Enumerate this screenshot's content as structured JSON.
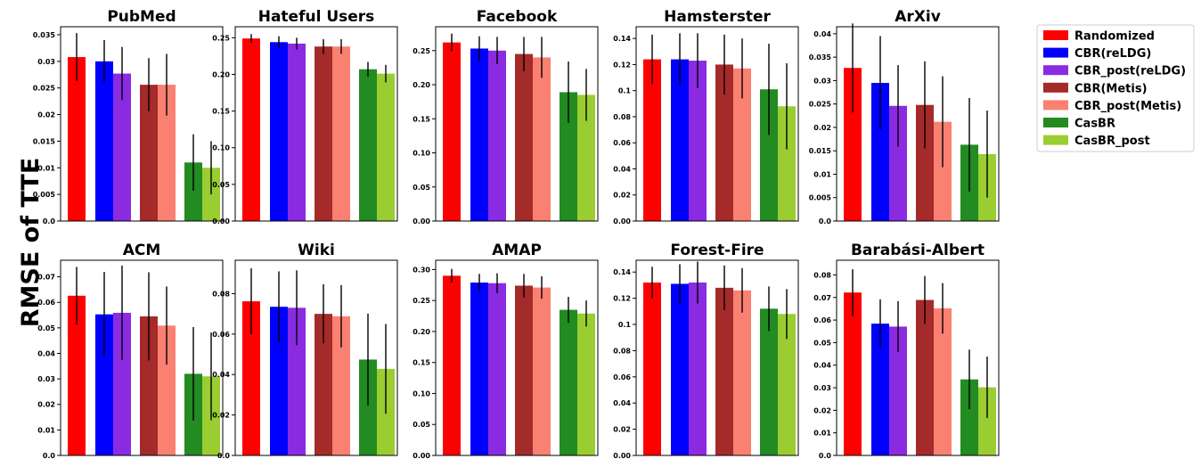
{
  "figure": {
    "ylabel": "RMSE of TTE"
  },
  "legend": {
    "placement": "right",
    "entries": [
      {
        "label": "Randomized",
        "color": "#ff0000"
      },
      {
        "label": "CBR(reLDG)",
        "color": "#0000ff"
      },
      {
        "label": "CBR_post(reLDG)",
        "color": "#8a2be2"
      },
      {
        "label": "CBR(Metis)",
        "color": "#a52a2a"
      },
      {
        "label": "CBR_post(Metis)",
        "color": "#fa8072"
      },
      {
        "label": "CasBR",
        "color": "#228b22"
      },
      {
        "label": "CasBR_post",
        "color": "#9acd32"
      }
    ]
  },
  "chart_data": [
    {
      "type": "bar",
      "title": "PubMed",
      "ylim": [
        0,
        0.0365
      ],
      "ticks": [
        0.0,
        0.005,
        0.01,
        0.015,
        0.02,
        0.025,
        0.03,
        0.035
      ],
      "tick_labels": [
        "0.0",
        "0.005",
        "0.01",
        "0.015",
        "0.02",
        "0.025",
        "0.03",
        "0.035"
      ],
      "values": [
        0.0308,
        0.03,
        0.0277,
        0.0256,
        0.0256,
        0.011,
        0.01
      ],
      "errors": [
        0.0045,
        0.004,
        0.005,
        0.005,
        0.0058,
        0.0053,
        0.005
      ]
    },
    {
      "type": "bar",
      "title": "Hateful Users",
      "ylim": [
        0,
        0.265
      ],
      "ticks": [
        0.0,
        0.05,
        0.1,
        0.15,
        0.2,
        0.25
      ],
      "tick_labels": [
        "0.00",
        "0.05",
        "0.10",
        "0.15",
        "0.20",
        "0.25"
      ],
      "values": [
        0.249,
        0.244,
        0.242,
        0.238,
        0.238,
        0.207,
        0.201
      ],
      "errors": [
        0.006,
        0.008,
        0.008,
        0.01,
        0.01,
        0.01,
        0.012
      ]
    },
    {
      "type": "bar",
      "title": "Facebook",
      "ylim": [
        0,
        0.285
      ],
      "ticks": [
        0.0,
        0.05,
        0.1,
        0.15,
        0.2,
        0.25
      ],
      "tick_labels": [
        "0.00",
        "0.05",
        "0.10",
        "0.15",
        "0.20",
        "0.25"
      ],
      "values": [
        0.262,
        0.253,
        0.25,
        0.245,
        0.24,
        0.189,
        0.185
      ],
      "errors": [
        0.013,
        0.018,
        0.02,
        0.025,
        0.03,
        0.045,
        0.038
      ]
    },
    {
      "type": "bar",
      "title": "Hamsterster",
      "ylim": [
        0,
        0.149
      ],
      "ticks": [
        0.0,
        0.02,
        0.04,
        0.06,
        0.08,
        0.1,
        0.12,
        0.14
      ],
      "tick_labels": [
        "0.00",
        "0.02",
        "0.04",
        "0.06",
        "0.08",
        "0.1",
        "0.12",
        "0.14"
      ],
      "values": [
        0.124,
        0.124,
        0.123,
        0.12,
        0.117,
        0.101,
        0.088
      ],
      "errors": [
        0.019,
        0.02,
        0.021,
        0.023,
        0.023,
        0.035,
        0.033
      ]
    },
    {
      "type": "bar",
      "title": "ArXiv",
      "ylim": [
        0,
        0.0415
      ],
      "ticks": [
        0.0,
        0.005,
        0.01,
        0.015,
        0.02,
        0.025,
        0.03,
        0.035,
        0.04
      ],
      "tick_labels": [
        "0.0",
        "0.005",
        "0.01",
        "0.015",
        "0.02",
        "0.025",
        "0.03",
        "0.035",
        "0.04"
      ],
      "values": [
        0.0327,
        0.0295,
        0.0246,
        0.0248,
        0.0212,
        0.0163,
        0.0143
      ],
      "errors": [
        0.0095,
        0.01,
        0.0087,
        0.0093,
        0.0097,
        0.01,
        0.0093
      ]
    },
    {
      "type": "bar",
      "title": "ACM",
      "ylim": [
        0,
        0.0765
      ],
      "ticks": [
        0.0,
        0.01,
        0.02,
        0.03,
        0.04,
        0.05,
        0.06,
        0.07
      ],
      "tick_labels": [
        "0.0",
        "0.01",
        "0.02",
        "0.03",
        "0.04",
        "0.05",
        "0.06",
        "0.07"
      ],
      "values": [
        0.0626,
        0.0553,
        0.0559,
        0.0545,
        0.0509,
        0.032,
        0.031
      ],
      "errors": [
        0.0113,
        0.0166,
        0.0185,
        0.0173,
        0.0153,
        0.0183,
        0.0172
      ]
    },
    {
      "type": "bar",
      "title": "Wiki",
      "ylim": [
        0,
        0.0965
      ],
      "ticks": [
        0.0,
        0.02,
        0.04,
        0.06,
        0.08
      ],
      "tick_labels": [
        "0.0",
        "0.02",
        "0.04",
        "0.06",
        "0.08"
      ],
      "values": [
        0.0762,
        0.0735,
        0.073,
        0.07,
        0.0688,
        0.0474,
        0.0428
      ],
      "errors": [
        0.0163,
        0.0175,
        0.0185,
        0.0146,
        0.0154,
        0.0227,
        0.0222
      ]
    },
    {
      "type": "bar",
      "title": "AMAP",
      "ylim": [
        0,
        0.315
      ],
      "ticks": [
        0.0,
        0.05,
        0.1,
        0.15,
        0.2,
        0.25,
        0.3
      ],
      "tick_labels": [
        "0.00",
        "0.05",
        "0.10",
        "0.15",
        "0.20",
        "0.25",
        "0.30"
      ],
      "values": [
        0.29,
        0.279,
        0.278,
        0.274,
        0.271,
        0.235,
        0.229
      ],
      "errors": [
        0.011,
        0.014,
        0.016,
        0.019,
        0.018,
        0.021,
        0.021
      ]
    },
    {
      "type": "bar",
      "title": "Forest-Fire",
      "ylim": [
        0,
        0.149
      ],
      "ticks": [
        0.0,
        0.02,
        0.04,
        0.06,
        0.08,
        0.1,
        0.12,
        0.14
      ],
      "tick_labels": [
        "0.00",
        "0.02",
        "0.04",
        "0.06",
        "0.08",
        "0.1",
        "0.12",
        "0.14"
      ],
      "values": [
        0.132,
        0.131,
        0.132,
        0.128,
        0.126,
        0.112,
        0.108
      ],
      "errors": [
        0.012,
        0.015,
        0.016,
        0.017,
        0.017,
        0.017,
        0.019
      ]
    },
    {
      "type": "bar",
      "title": "Barabási-Albert",
      "ylim": [
        0,
        0.0865
      ],
      "ticks": [
        0.0,
        0.01,
        0.02,
        0.03,
        0.04,
        0.05,
        0.06,
        0.07,
        0.08
      ],
      "tick_labels": [
        "0.0",
        "0.01",
        "0.02",
        "0.03",
        "0.04",
        "0.05",
        "0.06",
        "0.07",
        "0.08"
      ],
      "values": [
        0.0722,
        0.0584,
        0.0571,
        0.0689,
        0.0652,
        0.0337,
        0.0302
      ],
      "errors": [
        0.0103,
        0.0108,
        0.0113,
        0.0106,
        0.0112,
        0.0132,
        0.0136
      ]
    }
  ]
}
